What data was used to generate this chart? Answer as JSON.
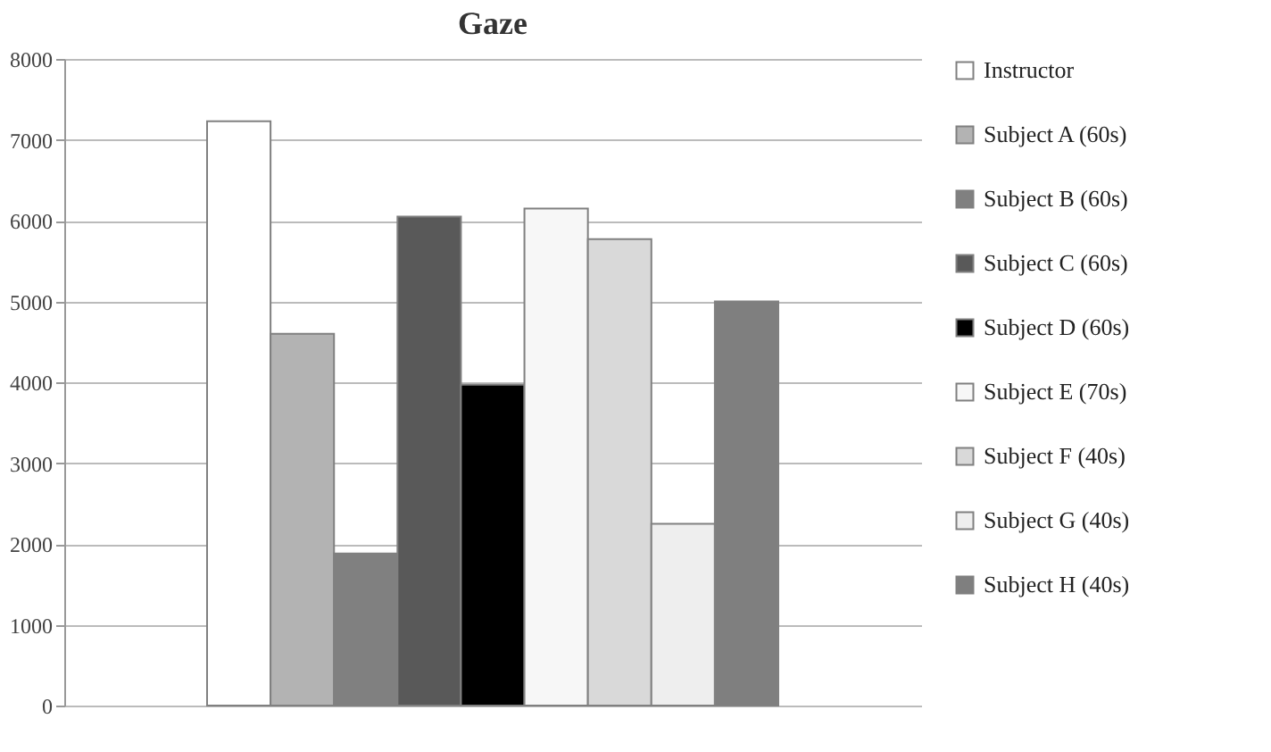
{
  "chart_data": {
    "type": "bar",
    "title": "Gaze",
    "categories": [
      null
    ],
    "series": [
      {
        "name": "Instructor",
        "color": "#ffffff",
        "values": [
          7230
        ]
      },
      {
        "name": "Subject A (60s)",
        "color": "#b3b3b3",
        "values": [
          4600
        ]
      },
      {
        "name": "Subject B (60s)",
        "color": "#808080",
        "values": [
          1880
        ]
      },
      {
        "name": "Subject C (60s)",
        "color": "#595959",
        "values": [
          6050
        ]
      },
      {
        "name": "Subject D (60s)",
        "color": "#000000",
        "values": [
          3970
        ]
      },
      {
        "name": "Subject E (70s)",
        "color": "#f7f7f7",
        "values": [
          6150
        ]
      },
      {
        "name": "Subject F (40s)",
        "color": "#d9d9d9",
        "values": [
          5770
        ]
      },
      {
        "name": "Subject G (40s)",
        "color": "#eeeeee",
        "values": [
          2250
        ]
      },
      {
        "name": "Subject H (40s)",
        "color": "#7f7f7f",
        "values": [
          5000
        ]
      }
    ],
    "ylim": [
      0,
      8000
    ],
    "yticks": [
      0,
      1000,
      2000,
      3000,
      4000,
      5000,
      6000,
      7000,
      8000
    ],
    "grid": "y",
    "legend": "right",
    "tick_labels": "y"
  }
}
